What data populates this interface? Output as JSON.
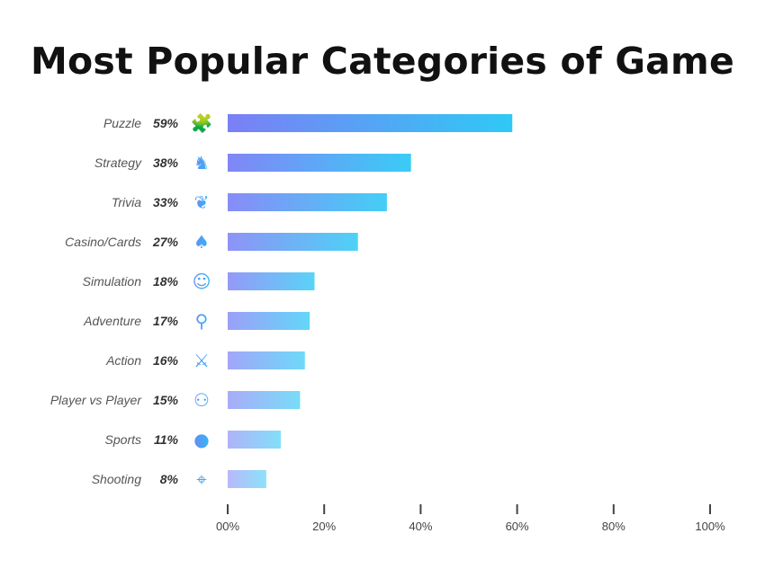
{
  "chart_data": {
    "type": "bar",
    "orientation": "horizontal",
    "title": "Most Popular Categories of Game",
    "categories": [
      "Puzzle",
      "Strategy",
      "Trivia",
      "Casino/Cards",
      "Simulation",
      "Adventure",
      "Action",
      "Player vs Player",
      "Sports",
      "Shooting"
    ],
    "values": [
      59,
      38,
      33,
      27,
      18,
      17,
      16,
      15,
      11,
      8
    ],
    "value_labels": [
      "59%",
      "38%",
      "33%",
      "27%",
      "18%",
      "17%",
      "16%",
      "15%",
      "11%",
      "8%"
    ],
    "icons": [
      "puzzle-icon",
      "chess-knight-icon",
      "brain-icon",
      "playing-cards-icon",
      "vr-headset-person-icon",
      "hiker-icon",
      "soldier-rifle-icon",
      "gamepad-vs-icon",
      "basketball-icon",
      "crosshair-icon"
    ],
    "xlim": [
      0,
      100
    ],
    "xticks": [
      "00%",
      "20%",
      "40%",
      "60%",
      "80%",
      "100%"
    ],
    "xtick_values": [
      0,
      20,
      40,
      60,
      80,
      100
    ],
    "grid": false,
    "colors": {
      "gradient_start": "#7b7ff5",
      "gradient_end": "#2fc9f5",
      "icon": "#4f8ef5"
    }
  }
}
